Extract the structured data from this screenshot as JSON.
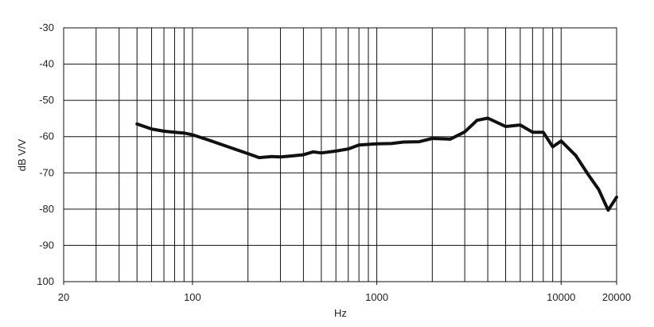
{
  "chart_data": {
    "type": "line",
    "x_label": "Hz",
    "y_label": "dB V/V",
    "x_scale": "log",
    "xlim": [
      20,
      20000
    ],
    "xticks": [
      20,
      100,
      1000,
      10000,
      20000
    ],
    "xgrid": [
      30,
      40,
      50,
      60,
      70,
      80,
      90,
      100,
      200,
      300,
      400,
      500,
      600,
      700,
      800,
      900,
      1000,
      2000,
      3000,
      4000,
      5000,
      6000,
      7000,
      8000,
      9000,
      10000
    ],
    "ylim": [
      -100,
      -30
    ],
    "yticks": [
      {
        "value": -100,
        "label": "100"
      },
      -90,
      -80,
      -70,
      -60,
      -50,
      -40,
      -30
    ],
    "grid": true,
    "series": [
      {
        "name": null,
        "color": "#111111",
        "x": [
          50,
          60,
          70,
          80,
          90,
          100,
          120,
          150,
          200,
          230,
          270,
          300,
          350,
          400,
          450,
          500,
          600,
          700,
          800,
          1000,
          1200,
          1400,
          1700,
          2000,
          2500,
          3000,
          3500,
          4000,
          5000,
          6000,
          7000,
          8000,
          9000,
          10000,
          12000,
          14000,
          16000,
          18000,
          20000
        ],
        "values": [
          -56.5,
          -57.9,
          -58.5,
          -58.8,
          -59.0,
          -59.5,
          -60.8,
          -62.5,
          -64.7,
          -65.8,
          -65.5,
          -65.6,
          -65.3,
          -65.0,
          -64.2,
          -64.5,
          -64.0,
          -63.4,
          -62.3,
          -62.0,
          -61.9,
          -61.5,
          -61.4,
          -60.5,
          -60.7,
          -58.7,
          -55.5,
          -54.9,
          -57.2,
          -56.8,
          -58.8,
          -58.8,
          -62.8,
          -61.2,
          -65.2,
          -70.4,
          -74.6,
          -80.3,
          -76.7
        ]
      }
    ]
  }
}
